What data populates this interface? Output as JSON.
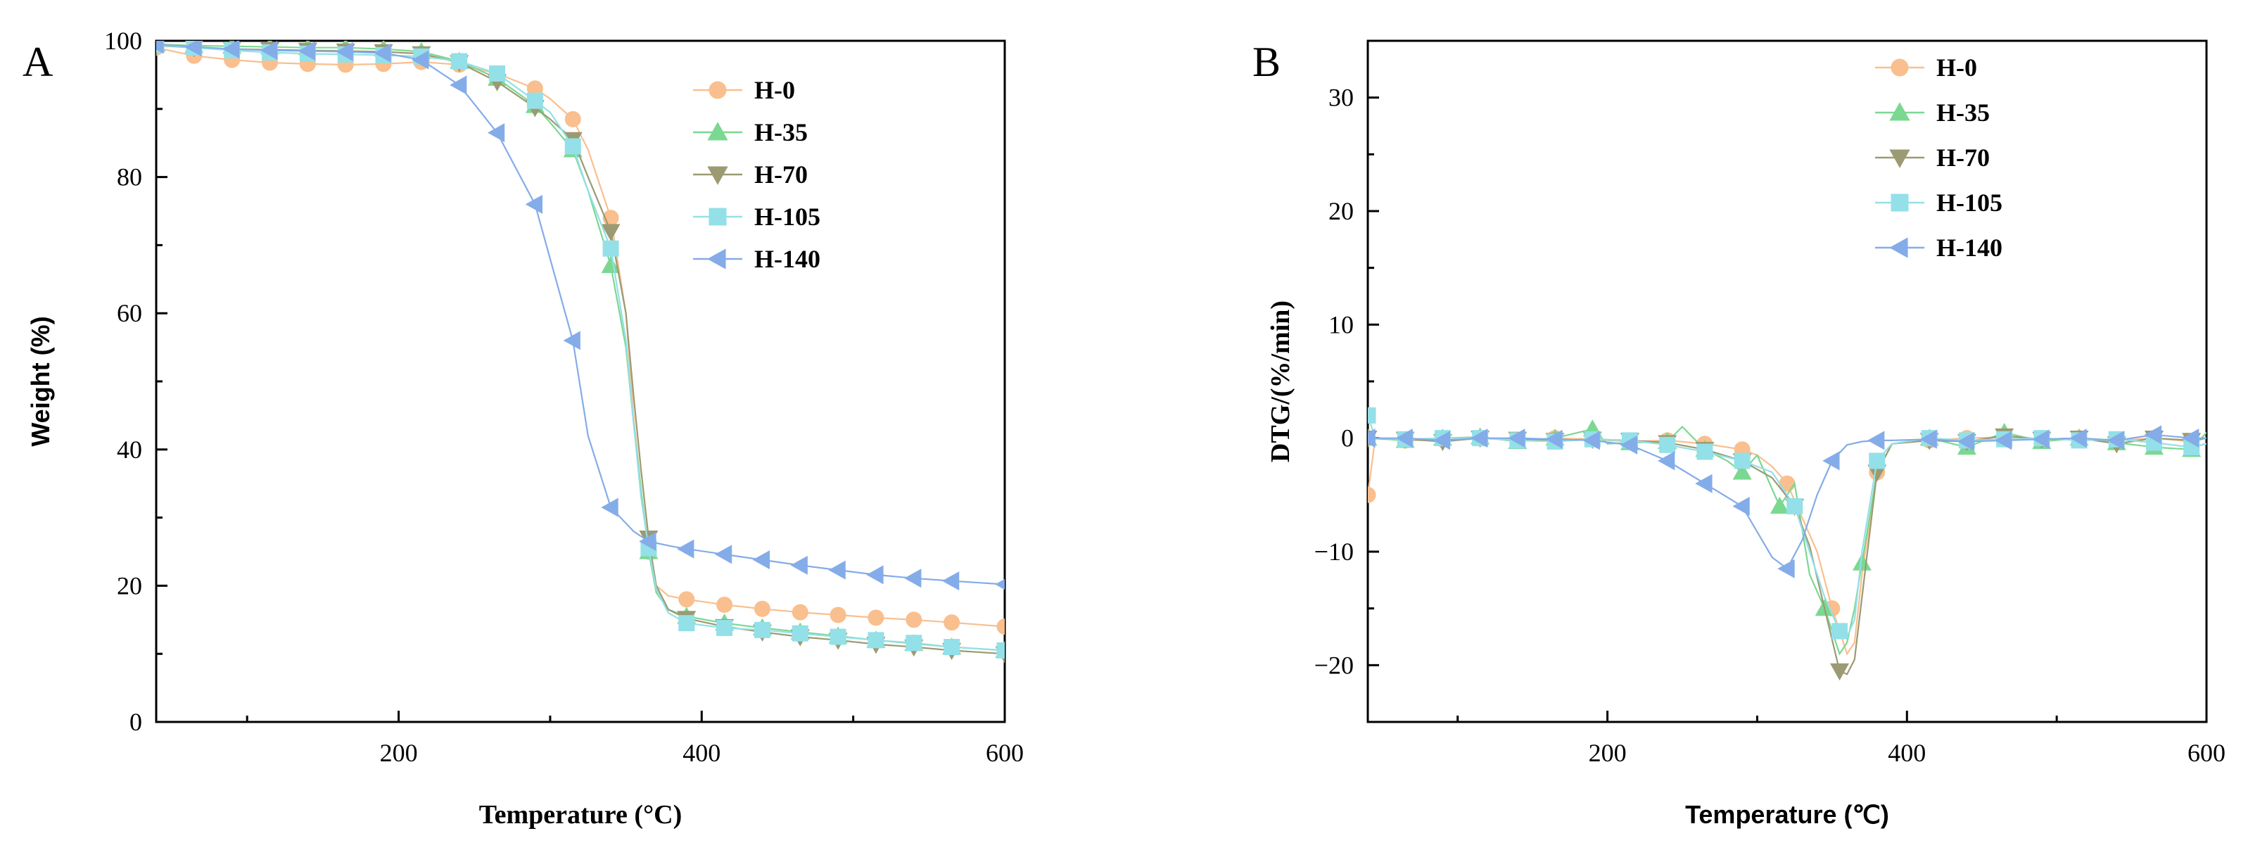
{
  "series_styles": [
    {
      "name": "H-0",
      "color": "#f9bf8e",
      "marker": "circle"
    },
    {
      "name": "H-35",
      "color": "#7bd891",
      "marker": "triangle-up"
    },
    {
      "name": "H-70",
      "color": "#9c9a72",
      "marker": "triangle-down"
    },
    {
      "name": "H-105",
      "color": "#93e0e8",
      "marker": "square"
    },
    {
      "name": "H-140",
      "color": "#84ace8",
      "marker": "triangle-left"
    }
  ],
  "chart_data": [
    {
      "panel": "A",
      "type": "line",
      "xlabel": "Temperature (°C)",
      "ylabel": "Weight (%)",
      "xlim": [
        40,
        600
      ],
      "ylim": [
        0,
        100
      ],
      "xticks": [
        200,
        400,
        600
      ],
      "yticks": [
        0,
        20,
        40,
        60,
        80,
        100
      ],
      "legend_position": "top-right",
      "series": [
        {
          "name": "H-0",
          "x": [
            40,
            65,
            90,
            115,
            140,
            165,
            190,
            215,
            240,
            265,
            290,
            300,
            315,
            325,
            340,
            350,
            355,
            360,
            365,
            370,
            378,
            390,
            415,
            440,
            465,
            490,
            515,
            540,
            565,
            600
          ],
          "values": [
            99,
            97.8,
            97.2,
            96.8,
            96.6,
            96.5,
            96.6,
            96.9,
            96.5,
            95.2,
            93,
            91.5,
            88.5,
            84,
            74,
            60,
            45,
            34,
            25,
            20,
            18.5,
            18,
            17.2,
            16.6,
            16.1,
            15.7,
            15.3,
            15,
            14.6,
            14
          ]
        },
        {
          "name": "H-35",
          "x": [
            40,
            65,
            90,
            115,
            140,
            165,
            190,
            215,
            240,
            265,
            290,
            300,
            315,
            325,
            340,
            350,
            355,
            360,
            365,
            370,
            378,
            390,
            415,
            440,
            465,
            490,
            515,
            540,
            565,
            600
          ],
          "values": [
            99.5,
            99.3,
            99.2,
            99.1,
            99,
            99,
            98.8,
            98.4,
            97,
            94.5,
            90.5,
            88,
            84,
            78,
            67,
            55,
            44,
            34,
            25,
            19,
            16.5,
            15.5,
            14.5,
            13.8,
            13.2,
            12.6,
            12,
            11.5,
            11,
            10.5
          ]
        },
        {
          "name": "H-70",
          "x": [
            40,
            65,
            90,
            115,
            140,
            165,
            190,
            215,
            240,
            265,
            290,
            300,
            315,
            325,
            340,
            350,
            355,
            360,
            365,
            370,
            378,
            390,
            415,
            440,
            465,
            490,
            515,
            540,
            565,
            600
          ],
          "values": [
            99.3,
            99,
            98.8,
            98.7,
            98.6,
            98.5,
            98.4,
            98.1,
            96.8,
            94,
            90.2,
            88.5,
            85.5,
            80,
            72,
            60,
            48,
            37,
            27,
            20,
            16.5,
            15.2,
            14,
            13.2,
            12.5,
            12,
            11.4,
            11,
            10.5,
            10
          ]
        },
        {
          "name": "H-105",
          "x": [
            40,
            65,
            90,
            115,
            140,
            165,
            190,
            215,
            240,
            265,
            290,
            300,
            315,
            325,
            340,
            350,
            355,
            360,
            365,
            370,
            378,
            390,
            415,
            440,
            465,
            490,
            515,
            540,
            565,
            600
          ],
          "values": [
            99.4,
            99,
            98.6,
            98.3,
            98.1,
            98,
            97.9,
            97.7,
            97,
            95.2,
            91.2,
            89.5,
            84.5,
            78,
            69.5,
            56,
            44,
            33,
            25.5,
            19.5,
            16,
            14.5,
            13.8,
            13.5,
            13,
            12.5,
            12,
            11.6,
            11,
            10.5
          ]
        },
        {
          "name": "H-140",
          "x": [
            40,
            65,
            90,
            115,
            140,
            165,
            190,
            215,
            240,
            265,
            290,
            300,
            315,
            325,
            340,
            355,
            365,
            380,
            390,
            415,
            440,
            465,
            490,
            515,
            540,
            565,
            600
          ],
          "values": [
            99.5,
            99.1,
            98.8,
            98.6,
            98.5,
            98.4,
            98.2,
            97.2,
            93.5,
            86.5,
            76,
            68,
            56,
            42,
            31.5,
            28,
            26.5,
            25.8,
            25.4,
            24.6,
            23.8,
            23,
            22.3,
            21.6,
            21.1,
            20.7,
            20.2
          ]
        }
      ]
    },
    {
      "panel": "B",
      "type": "line",
      "xlabel": "Temperature (℃)",
      "ylabel": "DTG/(%/min)",
      "xlim": [
        40,
        600
      ],
      "ylim": [
        -25,
        35
      ],
      "xticks": [
        200,
        400,
        600
      ],
      "yticks": [
        -20,
        -10,
        0,
        10,
        20,
        30
      ],
      "legend_position": "top-right",
      "series": [
        {
          "name": "H-0",
          "x": [
            40,
            45,
            65,
            90,
            115,
            140,
            165,
            190,
            215,
            240,
            265,
            290,
            300,
            310,
            320,
            330,
            340,
            350,
            355,
            360,
            365,
            370,
            380,
            390,
            415,
            440,
            465,
            490,
            515,
            540,
            565,
            590,
            600
          ],
          "values": [
            -5,
            0,
            -0.2,
            -0.1,
            0,
            -0.2,
            0,
            -0.1,
            -0.3,
            -0.2,
            -0.5,
            -1,
            -1.5,
            -2.5,
            -4,
            -7,
            -10,
            -15,
            -17,
            -19,
            -18,
            -12,
            -3,
            -0.5,
            -0.2,
            0,
            0.1,
            -0.1,
            0,
            -0.2,
            0,
            -0.3,
            0
          ]
        },
        {
          "name": "H-35",
          "x": [
            40,
            65,
            90,
            115,
            140,
            165,
            190,
            200,
            215,
            240,
            250,
            265,
            280,
            290,
            300,
            315,
            325,
            335,
            345,
            355,
            360,
            365,
            370,
            380,
            390,
            415,
            440,
            465,
            490,
            515,
            540,
            565,
            590,
            600
          ],
          "values": [
            0,
            -0.2,
            0,
            0.1,
            -0.3,
            0,
            0.8,
            -0.5,
            -0.4,
            -0.3,
            1,
            -1,
            -2,
            -3,
            -1.5,
            -6,
            -4,
            -12,
            -15,
            -19,
            -18,
            -15,
            -11,
            -3,
            -0.5,
            0,
            -0.8,
            0.5,
            -0.3,
            0,
            -0.4,
            -0.8,
            -1,
            0.5
          ]
        },
        {
          "name": "H-70",
          "x": [
            40,
            65,
            90,
            115,
            140,
            165,
            190,
            215,
            240,
            265,
            290,
            310,
            325,
            335,
            345,
            355,
            360,
            365,
            370,
            380,
            390,
            415,
            440,
            465,
            490,
            515,
            540,
            565,
            590,
            600
          ],
          "values": [
            0,
            -0.1,
            -0.3,
            0,
            -0.1,
            -0.2,
            -0.1,
            -0.2,
            -0.4,
            -1,
            -2,
            -3.5,
            -6,
            -9.5,
            -15,
            -20.5,
            -20.8,
            -19.5,
            -14,
            -3,
            -0.5,
            -0.2,
            -0.3,
            0.2,
            -0.1,
            0,
            -0.5,
            0,
            -0.2,
            0
          ]
        },
        {
          "name": "H-105",
          "x": [
            40,
            45,
            65,
            90,
            115,
            140,
            165,
            190,
            215,
            240,
            265,
            290,
            310,
            325,
            335,
            345,
            355,
            360,
            365,
            370,
            380,
            390,
            415,
            440,
            465,
            490,
            515,
            540,
            565,
            590,
            600
          ],
          "values": [
            2,
            0,
            -0.1,
            0,
            0,
            -0.2,
            -0.3,
            -0.1,
            -0.2,
            -0.6,
            -1.2,
            -2,
            -3,
            -6,
            -10,
            -14,
            -17,
            -17.5,
            -16,
            -10,
            -2,
            -0.5,
            0,
            -0.2,
            -0.1,
            0,
            -0.2,
            -0.1,
            -0.4,
            -0.8,
            -0.5
          ]
        },
        {
          "name": "H-140",
          "x": [
            40,
            65,
            90,
            115,
            140,
            165,
            190,
            215,
            240,
            265,
            290,
            310,
            320,
            330,
            340,
            350,
            360,
            370,
            380,
            390,
            415,
            440,
            465,
            490,
            515,
            540,
            565,
            590,
            600
          ],
          "values": [
            0,
            0,
            -0.2,
            0,
            0,
            -0.1,
            -0.2,
            -0.6,
            -2,
            -4,
            -6,
            -10.5,
            -11.5,
            -9,
            -5,
            -2,
            -0.6,
            -0.3,
            -0.2,
            -0.2,
            -0.1,
            -0.3,
            -0.2,
            -0.1,
            0,
            -0.2,
            0.3,
            0,
            0
          ]
        }
      ]
    }
  ]
}
